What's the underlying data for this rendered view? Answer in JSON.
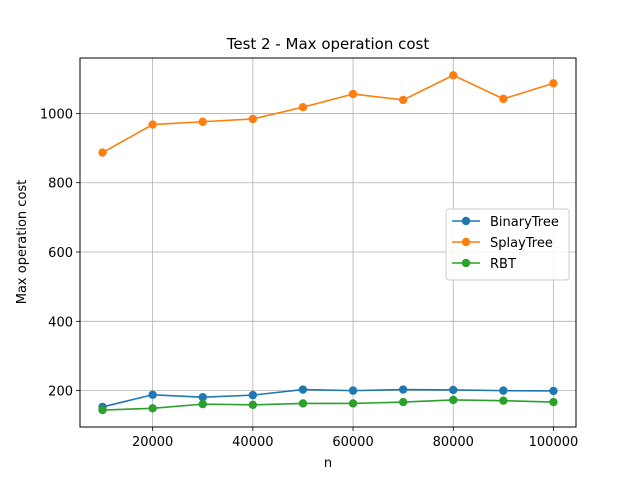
{
  "chart_data": {
    "type": "line",
    "title": "Test 2 - Max operation cost",
    "xlabel": "n",
    "ylabel": "Max operation cost",
    "x": [
      10000,
      20000,
      30000,
      40000,
      50000,
      60000,
      70000,
      80000,
      90000,
      100000
    ],
    "xlim": [
      5500,
      104500
    ],
    "ylim": [
      95,
      1160
    ],
    "xticks": [
      20000,
      40000,
      60000,
      80000,
      100000
    ],
    "yticks": [
      200,
      400,
      600,
      800,
      1000
    ],
    "grid": true,
    "legend_position": "center-right",
    "series": [
      {
        "name": "BinaryTree",
        "color": "#1f77b4",
        "values": [
          153,
          188,
          181,
          187,
          203,
          200,
          203,
          202,
          200,
          199
        ]
      },
      {
        "name": "SplayTree",
        "color": "#ff7f0e",
        "values": [
          887,
          968,
          976,
          984,
          1018,
          1056,
          1039,
          1110,
          1042,
          1087
        ]
      },
      {
        "name": "RBT",
        "color": "#2ca02c",
        "values": [
          144,
          149,
          161,
          159,
          163,
          163,
          167,
          173,
          171,
          167
        ]
      }
    ]
  }
}
